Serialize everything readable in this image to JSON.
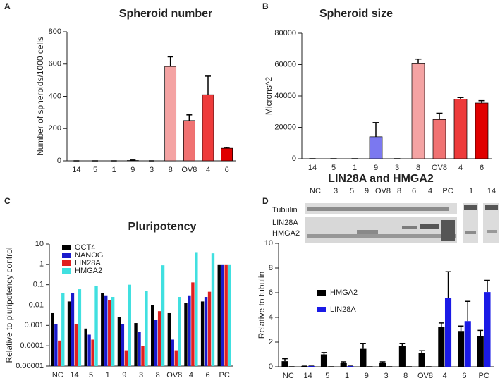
{
  "panel_labels": [
    "A",
    "B",
    "C",
    "D"
  ],
  "blot": {
    "title": "LIN28A and HMGA2",
    "lanes": [
      "NC",
      "3",
      "5",
      "9",
      "OV8",
      "8",
      "6",
      "4",
      "PC",
      "1",
      "14"
    ],
    "rows": [
      "Tubulin",
      "LIN28A",
      "HMGA2"
    ]
  },
  "chart_data": [
    {
      "type": "bar",
      "title": "Spheroid number",
      "y_label": "Number of spheroids/1000 cells",
      "categories": [
        "14",
        "5",
        "1",
        "9",
        "3",
        "8",
        "OV8",
        "4",
        "6"
      ],
      "values": [
        0,
        0,
        0,
        2,
        0,
        585,
        250,
        410,
        78
      ],
      "errors": [
        0,
        0,
        0,
        3,
        0,
        60,
        35,
        115,
        5
      ],
      "colors": [
        "#000000",
        "#000000",
        "#000000",
        "#000000",
        "#000000",
        "#f4a3a3",
        "#f07272",
        "#ee3b3b",
        "#e00000"
      ],
      "ylim": [
        0,
        800
      ],
      "yticks": [
        0,
        200,
        400,
        600,
        800
      ]
    },
    {
      "type": "bar",
      "title": "Spheroid size",
      "y_label": "Microns^2",
      "categories": [
        "14",
        "5",
        "1",
        "9",
        "3",
        "8",
        "OV8",
        "4",
        "6"
      ],
      "values": [
        0,
        0,
        0,
        14000,
        0,
        60500,
        25000,
        38000,
        35500
      ],
      "errors": [
        0,
        0,
        0,
        9000,
        0,
        3000,
        4000,
        1000,
        1500
      ],
      "colors": [
        "#000000",
        "#000000",
        "#000000",
        "#7b78f0",
        "#000000",
        "#f4a3a3",
        "#f07272",
        "#ee3b3b",
        "#e00000"
      ],
      "ylim": [
        0,
        80000
      ],
      "yticks": [
        0,
        20000,
        40000,
        60000,
        80000
      ]
    },
    {
      "type": "bar",
      "title": "Pluripotency",
      "y_label": "Relative to pluripotency control",
      "log_scale": true,
      "legend": "upper left",
      "categories": [
        "NC",
        "14",
        "5",
        "1",
        "9",
        "3",
        "8",
        "OV8",
        "4",
        "6",
        "PC"
      ],
      "series": [
        {
          "name": "OCT4",
          "color": "#000000",
          "values": [
            0.004,
            0.015,
            0.0007,
            0.04,
            0.0025,
            0.0013,
            0.01,
            0.004,
            0.013,
            0.015,
            1
          ]
        },
        {
          "name": "NANOG",
          "color": "#1a1acc",
          "values": [
            0.0012,
            0.04,
            0.00035,
            0.03,
            0.0012,
            0.0005,
            0.0018,
            0.0002,
            0.03,
            0.025,
            1
          ]
        },
        {
          "name": "LIN28A",
          "color": "#e02020",
          "values": [
            0.00018,
            0.0012,
            0.0002,
            0.018,
            6e-05,
            0.0001,
            0.005,
            6e-05,
            0.13,
            0.045,
            1
          ]
        },
        {
          "name": "HMGA2",
          "color": "#40e0e0",
          "values": [
            0.04,
            0.06,
            0.09,
            0.025,
            0.1,
            0.05,
            0.9,
            0.025,
            4,
            3.5,
            1
          ]
        }
      ],
      "ylim": [
        1e-05,
        10
      ],
      "yticks": [
        1e-05,
        0.0001,
        0.001,
        0.01,
        0.1,
        1,
        10
      ]
    },
    {
      "type": "bar",
      "y_label": "Relative to tubulin",
      "legend": "upper left",
      "categories": [
        "NC",
        "14",
        "5",
        "1",
        "9",
        "3",
        "8",
        "OV8",
        "4",
        "6",
        "PC"
      ],
      "series": [
        {
          "name": "HMGA2",
          "color": "#000000",
          "values": [
            0.45,
            0.05,
            1.0,
            0.3,
            1.45,
            0.3,
            1.7,
            1.1,
            3.25,
            2.9,
            2.5
          ],
          "errors": [
            0.2,
            0,
            0.15,
            0.1,
            0.45,
            0.1,
            0.2,
            0.2,
            0.3,
            0.4,
            0.45
          ]
        },
        {
          "name": "LIN28A",
          "color": "#1a1ae6",
          "values": [
            0,
            0.05,
            0,
            0.05,
            0,
            0,
            0,
            0,
            5.6,
            3.7,
            6.05
          ],
          "errors": [
            0,
            0,
            0,
            0,
            0,
            0,
            0,
            0,
            2.1,
            1.6,
            0.95
          ]
        }
      ],
      "ylim": [
        0,
        10
      ],
      "yticks": [
        0,
        2,
        4,
        6,
        8,
        10
      ]
    }
  ]
}
